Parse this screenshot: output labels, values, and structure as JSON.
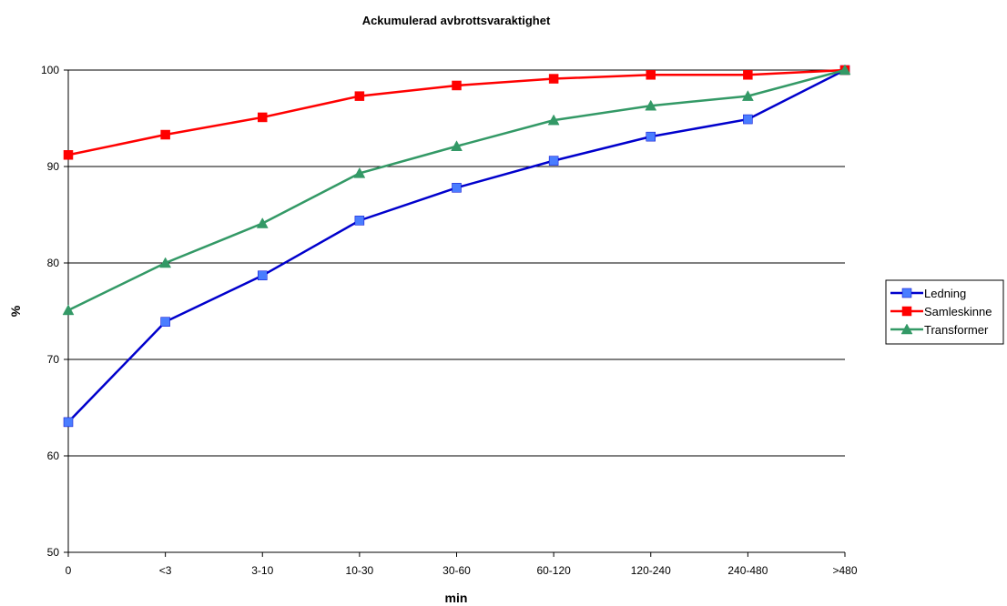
{
  "chart_data": {
    "type": "line",
    "title": "Ackumulerad avbrottsvaraktighet",
    "xlabel": "min",
    "ylabel": "%",
    "categories": [
      "0",
      "<3",
      "3-10",
      "10-30",
      "30-60",
      "60-120",
      "120-240",
      "240-480",
      ">480"
    ],
    "ylim": [
      50,
      100
    ],
    "yticks": [
      50,
      60,
      70,
      80,
      90,
      100
    ],
    "grid": true,
    "legend_position": "right",
    "series": [
      {
        "name": "Ledning",
        "color": "#0000cc",
        "marker_color": "#4a7dff",
        "marker": "square",
        "values": [
          63.5,
          73.9,
          78.7,
          84.4,
          87.8,
          90.6,
          93.1,
          94.9,
          100
        ]
      },
      {
        "name": "Samleskinne",
        "color": "#ff0000",
        "marker_color": "#ff0000",
        "marker": "square",
        "values": [
          91.2,
          93.3,
          95.1,
          97.3,
          98.4,
          99.1,
          99.5,
          99.5,
          100
        ]
      },
      {
        "name": "Transformer",
        "color": "#339966",
        "marker_color": "#339966",
        "marker": "triangle",
        "values": [
          75.1,
          80.0,
          84.1,
          89.3,
          92.1,
          94.8,
          96.3,
          97.3,
          100
        ]
      }
    ]
  }
}
